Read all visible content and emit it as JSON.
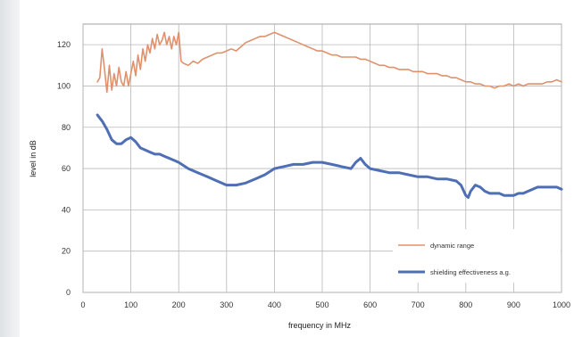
{
  "chart_data": {
    "type": "line",
    "xlabel": "frequency in MHz",
    "ylabel": "level in dB",
    "xlim": [
      0,
      1000
    ],
    "ylim": [
      0,
      130
    ],
    "xticks": [
      0,
      100,
      200,
      300,
      400,
      500,
      600,
      700,
      800,
      900,
      1000
    ],
    "yticks": [
      0,
      20,
      40,
      60,
      80,
      100,
      120
    ],
    "grid": true,
    "legend_position": "bottom-right",
    "series": [
      {
        "name": "dynamic range",
        "color": "#e0916b",
        "x": [
          30,
          35,
          40,
          45,
          50,
          55,
          60,
          65,
          70,
          75,
          80,
          85,
          90,
          95,
          100,
          105,
          110,
          115,
          120,
          125,
          130,
          135,
          140,
          145,
          150,
          155,
          160,
          165,
          170,
          175,
          180,
          185,
          190,
          195,
          200,
          205,
          210,
          220,
          230,
          240,
          250,
          260,
          270,
          280,
          290,
          300,
          310,
          320,
          330,
          340,
          350,
          360,
          370,
          380,
          390,
          400,
          410,
          420,
          430,
          440,
          450,
          460,
          470,
          480,
          490,
          500,
          510,
          520,
          530,
          540,
          550,
          560,
          570,
          580,
          590,
          600,
          610,
          620,
          630,
          640,
          650,
          660,
          670,
          680,
          690,
          700,
          710,
          720,
          730,
          740,
          750,
          760,
          770,
          780,
          790,
          800,
          810,
          820,
          830,
          840,
          850,
          860,
          870,
          880,
          890,
          900,
          910,
          920,
          930,
          940,
          950,
          960,
          970,
          980,
          990,
          1000
        ],
        "values": [
          102,
          104,
          118,
          108,
          97,
          110,
          98,
          106,
          100,
          109,
          102,
          100,
          107,
          100,
          106,
          112,
          105,
          115,
          108,
          118,
          112,
          120,
          116,
          123,
          118,
          125,
          120,
          122,
          126,
          120,
          124,
          118,
          124,
          120,
          126,
          112,
          111,
          110,
          112,
          111,
          113,
          114,
          115,
          116,
          116,
          117,
          118,
          117,
          119,
          121,
          122,
          123,
          124,
          124,
          125,
          126,
          125,
          124,
          123,
          122,
          121,
          120,
          119,
          118,
          117,
          117,
          116,
          115,
          115,
          114,
          114,
          114,
          114,
          113,
          113,
          112,
          111,
          110,
          110,
          109,
          109,
          108,
          108,
          108,
          107,
          107,
          107,
          106,
          106,
          106,
          105,
          105,
          104,
          104,
          103,
          102,
          102,
          101,
          101,
          100,
          100,
          99,
          100,
          100,
          101,
          100,
          101,
          100,
          101,
          101,
          101,
          101,
          102,
          102,
          103,
          102
        ]
      },
      {
        "name": "shielding effectiveness a.g.",
        "color": "#4f6fb5",
        "x": [
          30,
          40,
          50,
          60,
          70,
          80,
          90,
          100,
          110,
          120,
          130,
          140,
          150,
          160,
          170,
          180,
          190,
          200,
          220,
          240,
          260,
          280,
          300,
          320,
          340,
          360,
          380,
          400,
          420,
          440,
          460,
          480,
          500,
          520,
          540,
          560,
          570,
          580,
          590,
          600,
          620,
          640,
          660,
          680,
          700,
          720,
          740,
          760,
          780,
          790,
          800,
          805,
          810,
          820,
          830,
          840,
          850,
          860,
          870,
          880,
          890,
          900,
          910,
          920,
          930,
          940,
          950,
          960,
          970,
          980,
          990,
          1000
        ],
        "values": [
          86,
          83,
          79,
          74,
          72,
          72,
          74,
          75,
          73,
          70,
          69,
          68,
          67,
          67,
          66,
          65,
          64,
          63,
          60,
          58,
          56,
          54,
          52,
          52,
          53,
          55,
          57,
          60,
          61,
          62,
          62,
          63,
          63,
          62,
          61,
          60,
          63,
          65,
          62,
          60,
          59,
          58,
          58,
          57,
          56,
          56,
          55,
          55,
          54,
          52,
          47,
          46,
          49,
          52,
          51,
          49,
          48,
          48,
          48,
          47,
          47,
          47,
          48,
          48,
          49,
          50,
          51,
          51,
          51,
          51,
          51,
          50
        ]
      }
    ]
  }
}
